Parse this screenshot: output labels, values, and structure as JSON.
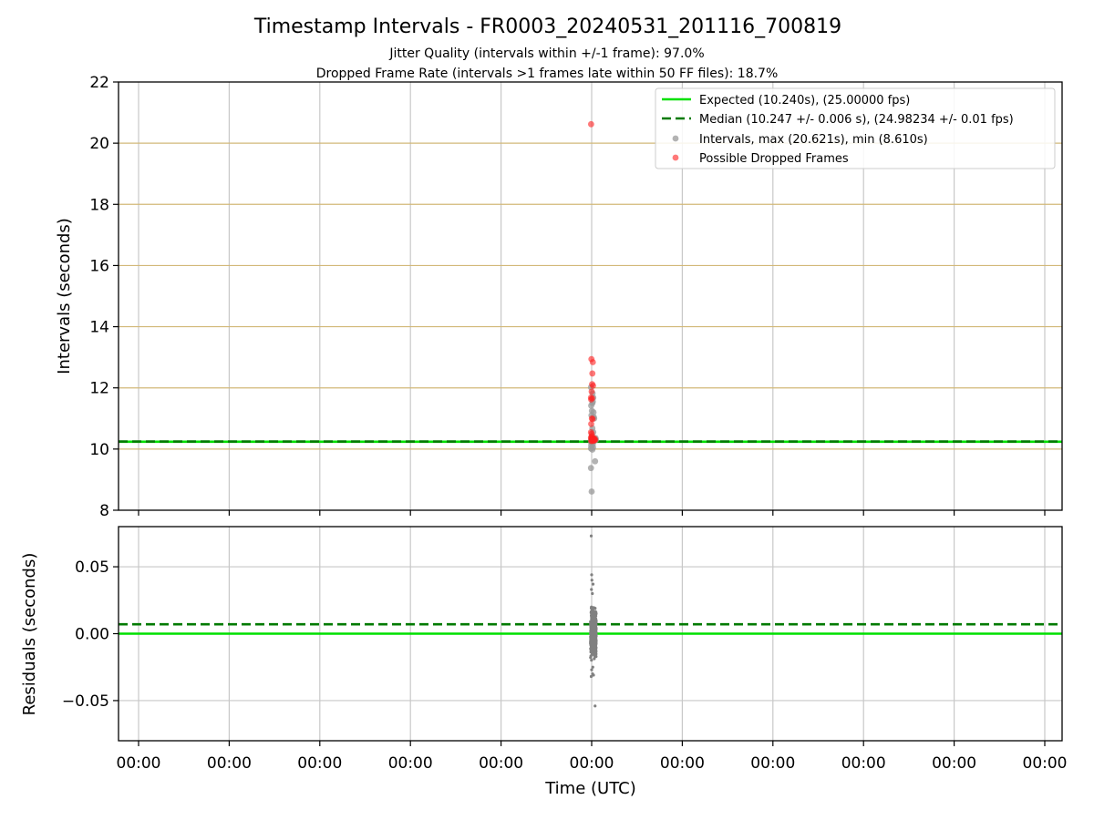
{
  "chart_data": [
    {
      "type": "scatter",
      "title": "Timestamp Intervals - FR0003_20240531_201116_700819",
      "subtitle": [
        "Jitter Quality (intervals within +/-1 frame): 97.0%",
        "Dropped Frame Rate (intervals >1 frames late within 50 FF files): 18.7%"
      ],
      "xlabel": "",
      "ylabel": "Intervals (seconds)",
      "ylim": [
        8,
        22
      ],
      "yticks": [
        8,
        10,
        12,
        14,
        16,
        18,
        20,
        22
      ],
      "xticks": [
        "00:00",
        "00:00",
        "00:00",
        "00:00",
        "00:00",
        "00:00",
        "00:00",
        "00:00",
        "00:00",
        "00:00",
        "00:00"
      ],
      "grid": true,
      "legend_position": "top-right",
      "legend": [
        "Expected (10.240s), (25.00000 fps)",
        "Median (10.247 +/- 0.006 s), (24.98234 +/- 0.01 fps)",
        "Intervals, max (20.621s), min (8.610s)",
        "Possible Dropped Frames"
      ],
      "reference_lines": [
        {
          "kind": "expected",
          "y": 10.24,
          "color": "#00e000",
          "style": "solid"
        },
        {
          "kind": "median",
          "y": 10.247,
          "color": "#007a00",
          "style": "dashed"
        }
      ],
      "series": [
        {
          "kind": "intervals",
          "color": "#999999",
          "points": [
            [
              0,
              10.31
            ],
            [
              0.004,
              10.33
            ],
            [
              0.008,
              10.28
            ],
            [
              0.012,
              10.35
            ],
            [
              -0.006,
              10.3
            ],
            [
              0.018,
              10.25
            ],
            [
              0.022,
              10.34
            ],
            [
              0.026,
              10.29
            ],
            [
              0.03,
              10.32
            ],
            [
              -0.004,
              10.22
            ],
            [
              0.034,
              10.36
            ],
            [
              0.038,
              10.3
            ],
            [
              -0.006,
              10.02
            ],
            [
              -0.004,
              10.12
            ],
            [
              0.002,
              10.42
            ],
            [
              0.014,
              10.55
            ],
            [
              0.006,
              10.68
            ],
            [
              0.01,
              10.15
            ],
            [
              -0.002,
              11.1
            ],
            [
              0.002,
              11.25
            ],
            [
              0.018,
              11.05
            ],
            [
              0.016,
              11.2
            ],
            [
              0.022,
              11.0
            ],
            [
              0.006,
              11.5
            ],
            [
              0.01,
              11.55
            ],
            [
              0.014,
              11.68
            ],
            [
              -0.004,
              11.42
            ],
            [
              0.008,
              11.82
            ],
            [
              -0.006,
              12.02
            ],
            [
              0.006,
              9.98
            ],
            [
              0.012,
              10.05
            ],
            [
              -0.006,
              9.38
            ],
            [
              0.03,
              9.6
            ],
            [
              0.0,
              8.61
            ]
          ]
        },
        {
          "kind": "dropped",
          "color": "#ff2020",
          "points": [
            [
              -0.005,
              20.62
            ],
            [
              -0.002,
              12.94
            ],
            [
              0.01,
              12.84
            ],
            [
              0.006,
              12.47
            ],
            [
              0.004,
              12.12
            ],
            [
              0.012,
              12.07
            ],
            [
              0.0,
              11.88
            ],
            [
              -0.006,
              11.68
            ],
            [
              -0.004,
              11.62
            ],
            [
              0.004,
              11.66
            ],
            [
              0.002,
              11.0
            ],
            [
              -0.004,
              10.82
            ],
            [
              0.008,
              10.98
            ],
            [
              -0.006,
              10.55
            ],
            [
              0.0,
              10.5
            ],
            [
              0.004,
              10.42
            ],
            [
              -0.006,
              10.38
            ],
            [
              -0.002,
              10.36
            ],
            [
              0.006,
              10.35
            ],
            [
              0.01,
              10.34
            ],
            [
              0.014,
              10.32
            ],
            [
              0.018,
              10.33
            ],
            [
              0.022,
              10.31
            ],
            [
              0.026,
              10.34
            ],
            [
              0.002,
              10.3
            ],
            [
              0.006,
              10.29
            ],
            [
              -0.004,
              10.27
            ],
            [
              0.012,
              10.28
            ],
            [
              0.018,
              10.27
            ],
            [
              0.024,
              10.29
            ],
            [
              0.03,
              10.3
            ],
            [
              0.0,
              10.26
            ],
            [
              0.008,
              10.33
            ]
          ]
        }
      ]
    },
    {
      "type": "scatter",
      "xlabel": "Time (UTC)",
      "ylabel": "Residuals (seconds)",
      "ylim": [
        -0.08,
        0.08
      ],
      "yticks": [
        -0.05,
        0.0,
        0.05
      ],
      "ytick_labels": [
        "−0.05",
        "0.00",
        "0.05"
      ],
      "xticks": [
        "00:00",
        "00:00",
        "00:00",
        "00:00",
        "00:00",
        "00:00",
        "00:00",
        "00:00",
        "00:00",
        "00:00",
        "00:00"
      ],
      "grid": true,
      "reference_lines": [
        {
          "kind": "expected",
          "y": 0.0,
          "color": "#00e000",
          "style": "solid"
        },
        {
          "kind": "median",
          "y": 0.007,
          "color": "#007a00",
          "style": "dashed"
        }
      ],
      "series": [
        {
          "kind": "residuals",
          "color": "#808080",
          "points": [
            [
              -0.004,
              0.073
            ],
            [
              0.0,
              0.044
            ],
            [
              0.002,
              0.04
            ],
            [
              0.012,
              0.037
            ],
            [
              -0.002,
              0.033
            ],
            [
              0.006,
              0.03
            ],
            [
              0.008,
              -0.03
            ],
            [
              -0.004,
              -0.032
            ],
            [
              0.016,
              -0.031
            ],
            [
              0.03,
              -0.054
            ],
            [
              0.0,
              -0.027
            ],
            [
              0.01,
              -0.025
            ]
          ],
          "band": {
            "x_from": -0.01,
            "x_to": 0.04,
            "y_from": -0.022,
            "y_to": 0.025,
            "count": 420
          }
        }
      ]
    }
  ]
}
